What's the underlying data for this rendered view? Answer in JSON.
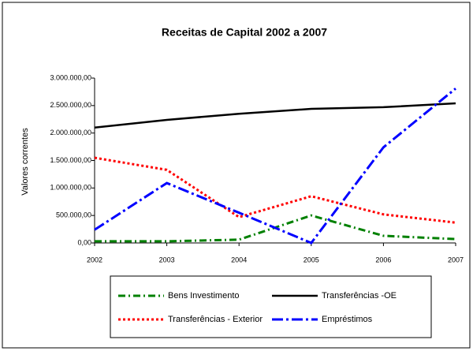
{
  "chart_data": {
    "type": "line",
    "title": "Receitas de Capital 2002 a 2007",
    "ylabel": "Valores correntes",
    "categories": [
      "2002",
      "2003",
      "2004",
      "2005",
      "2006",
      "2007"
    ],
    "series": [
      {
        "name": "Bens Investimento",
        "color": "#008000",
        "values": [
          30000,
          30000,
          60000,
          500000,
          130000,
          70000
        ]
      },
      {
        "name": "Transferências -OE",
        "color": "#000000",
        "values": [
          2100000,
          2240000,
          2350000,
          2440000,
          2470000,
          2540000
        ]
      },
      {
        "name": "Transferências - Exterior",
        "color": "#ff0000",
        "values": [
          1550000,
          1330000,
          470000,
          850000,
          520000,
          370000
        ]
      },
      {
        "name": "Empréstimos",
        "color": "#0000ff",
        "values": [
          240000,
          1090000,
          550000,
          0,
          1740000,
          2810000
        ]
      }
    ],
    "ylim": [
      0,
      3000000
    ],
    "yticks": [
      {
        "value": 0,
        "label": "0,00"
      },
      {
        "value": 500000,
        "label": "500.000,00"
      },
      {
        "value": 1000000,
        "label": "1.000.000,00"
      },
      {
        "value": 1500000,
        "label": "1.500.000,00"
      },
      {
        "value": 2000000,
        "label": "2.000.000,00"
      },
      {
        "value": 2500000,
        "label": "2.500.000,00"
      },
      {
        "value": 3000000,
        "label": "3.000.000,00"
      }
    ],
    "grid": false
  }
}
